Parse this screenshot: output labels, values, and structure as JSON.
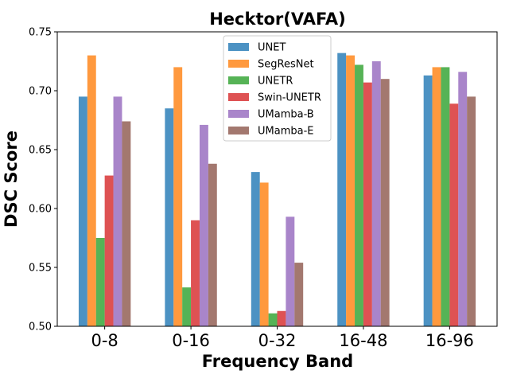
{
  "chart_data": {
    "type": "bar",
    "title": "Hecktor(VAFA)",
    "xlabel": "Frequency Band",
    "ylabel": "DSC Score",
    "ylim": [
      0.5,
      0.75
    ],
    "yticks": [
      "0.50",
      "0.55",
      "0.60",
      "0.65",
      "0.70",
      "0.75"
    ],
    "categories": [
      "0-8",
      "0-16",
      "0-32",
      "16-48",
      "16-96"
    ],
    "legend_position": "top-center",
    "series": [
      {
        "name": "UNET",
        "color": "#1f77b4",
        "values": [
          0.695,
          0.685,
          0.631,
          0.732,
          0.713
        ]
      },
      {
        "name": "SegResNet",
        "color": "#ff7f0e",
        "values": [
          0.73,
          0.72,
          0.622,
          0.73,
          0.72
        ]
      },
      {
        "name": "UNETR",
        "color": "#2ca02c",
        "values": [
          0.575,
          0.533,
          0.511,
          0.722,
          0.72
        ]
      },
      {
        "name": "Swin-UNETR",
        "color": "#d62728",
        "values": [
          0.628,
          0.59,
          0.513,
          0.707,
          0.689
        ]
      },
      {
        "name": "UMamba-B",
        "color": "#9467bd",
        "values": [
          0.695,
          0.671,
          0.593,
          0.725,
          0.716
        ]
      },
      {
        "name": "UMamba-E",
        "color": "#8c564b",
        "values": [
          0.674,
          0.638,
          0.554,
          0.71,
          0.695
        ]
      }
    ]
  }
}
